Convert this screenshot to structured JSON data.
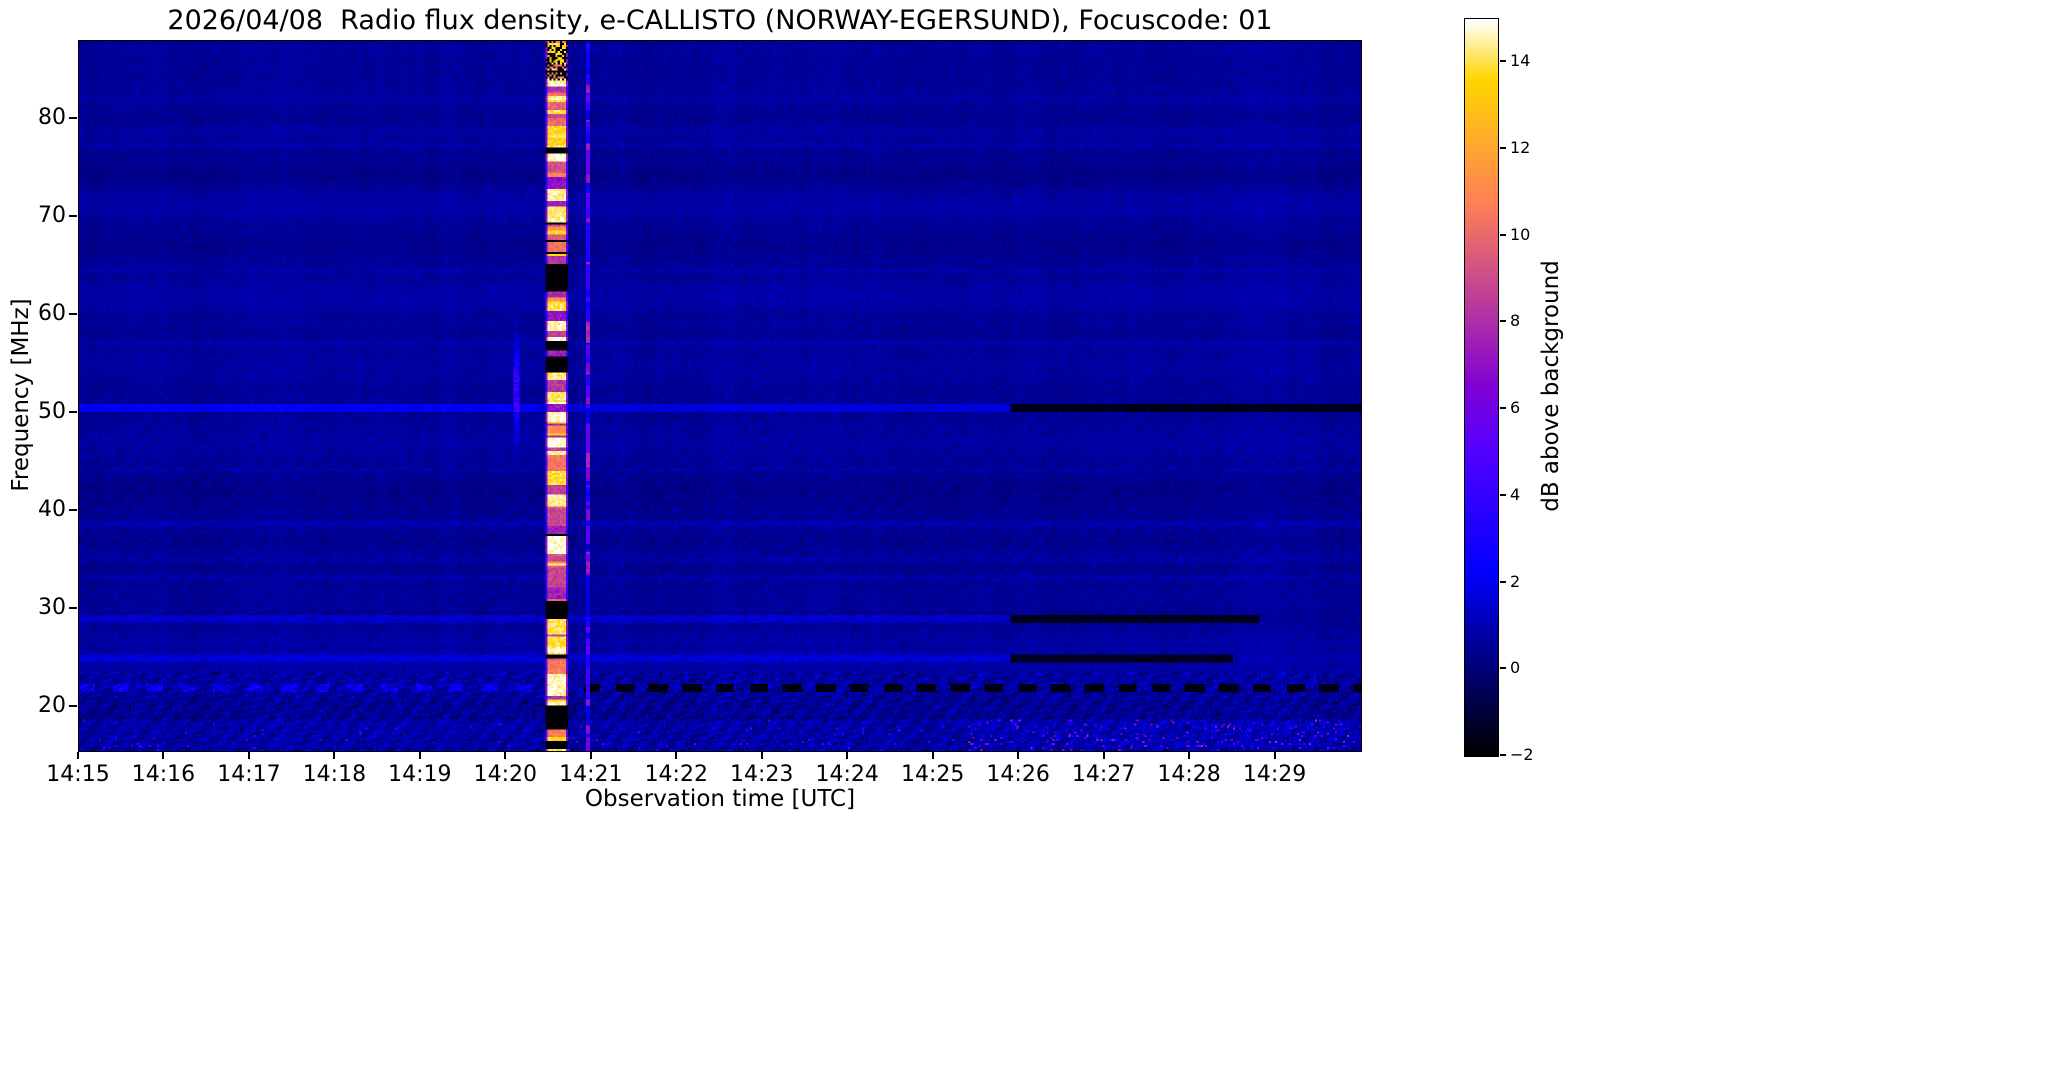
{
  "figure": {
    "title": "2026/04/08  Radio flux density, e-CALLISTO (NORWAY-EGERSUND), Focuscode: 01",
    "xlabel": "Observation time [UTC]",
    "ylabel": "Frequency [MHz]",
    "colorbar_label": "dB above background",
    "background_color": "#ffffff",
    "text_color": "#000000"
  },
  "chart_data": {
    "type": "heatmap",
    "title": "2026/04/08  Radio flux density, e-CALLISTO (NORWAY-EGERSUND), Focuscode: 01",
    "xlabel": "Observation time [UTC]",
    "ylabel": "Frequency [MHz]",
    "colorbar_label": "dB above background",
    "colormap": "gnuplot2",
    "grid": false,
    "x_tick_labels": [
      "14:15",
      "14:16",
      "14:17",
      "14:18",
      "14:19",
      "14:20",
      "14:21",
      "14:22",
      "14:23",
      "14:24",
      "14:25",
      "14:26",
      "14:27",
      "14:28",
      "14:29"
    ],
    "x_start": "14:15",
    "x_end": "14:30",
    "duration_min": 15,
    "y_tick_values": [
      20,
      30,
      40,
      50,
      60,
      70,
      80
    ],
    "y_range_mhz": [
      15.5,
      88
    ],
    "colorbar_ticks": [
      -2,
      0,
      2,
      4,
      6,
      8,
      10,
      12,
      14
    ],
    "value_range_db": [
      -2,
      15
    ],
    "background_level_db": 0.55,
    "features": [
      {
        "name": "saturated-burst",
        "kind": "vertical-band",
        "t_start_min": 5.45,
        "t_end_min": 5.73,
        "f_low_mhz": 15.5,
        "f_high_mhz": 88,
        "peak_db": 15,
        "description": "Saturated white/yellow vertical burst spanning all frequencies near 14:20:30, with horizontally banded black gaps"
      },
      {
        "name": "thin-vertical-line",
        "kind": "vertical-line",
        "t_min": 5.95,
        "half_width_min": 0.022,
        "level_db": 6,
        "description": "Narrow faint orange/white vertical line just before 14:21"
      },
      {
        "name": "pre-burst-blip",
        "kind": "spot",
        "t_min": 5.12,
        "f_mhz": 52.5,
        "f_spread_mhz": 3,
        "level_db": 4,
        "description": "Short faint magenta blip near 48-56 MHz at about 14:20:07"
      },
      {
        "name": "rfi-50.6",
        "kind": "horizontal-line",
        "f_mhz": 50.6,
        "bright_db": 1.1,
        "dark_from_min": 10.9,
        "dark_to_min": 15,
        "description": "Interference line at 50.6 MHz, brighter blue early, dark (below background) streak from ~14:26 to end"
      },
      {
        "name": "rfi-29",
        "kind": "horizontal-line",
        "f_mhz": 29.0,
        "bright_db": 0.9,
        "dark_from_min": 10.9,
        "dark_to_min": 13.8,
        "description": "Interference line at 29 MHz, dark streak ~14:26-14:29"
      },
      {
        "name": "rfi-25",
        "kind": "horizontal-line",
        "f_mhz": 25.0,
        "bright_db": 0.7,
        "dark_from_min": 10.9,
        "dark_to_min": 13.5,
        "description": "Interference line at 25 MHz, dark streak ~14:26-14:28.5"
      },
      {
        "name": "rfi-22-dashed",
        "kind": "horizontal-dashed",
        "f_mhz": 21.9,
        "bright_until_min": 5.4,
        "dark_from_min": 5.9,
        "description": "Dashed line near 22 MHz: bright blue dashes before the burst, black dashes after ~14:21"
      },
      {
        "name": "noise-band-low-freq",
        "kind": "region",
        "f_low_mhz": 15.5,
        "f_high_mhz": 23.5,
        "enhanced_from_min": 10.4,
        "enhanced_f_below_mhz": 18.8,
        "peak_db": 8,
        "description": "Speckled blue noise band with diagonal weave texture below ~23.5 MHz; enhanced pink/magenta activity at 16-18 MHz after ~14:25:30"
      },
      {
        "name": "faint-rfi-lines",
        "kind": "horizontal-lines",
        "freqs_mhz": [
          77.5,
          64.5,
          57.3,
          44.3,
          38.8,
          35.0,
          33.2
        ],
        "bright_db": 0.3,
        "description": "Very faint persistent brighter-blue horizontal channels"
      }
    ]
  }
}
